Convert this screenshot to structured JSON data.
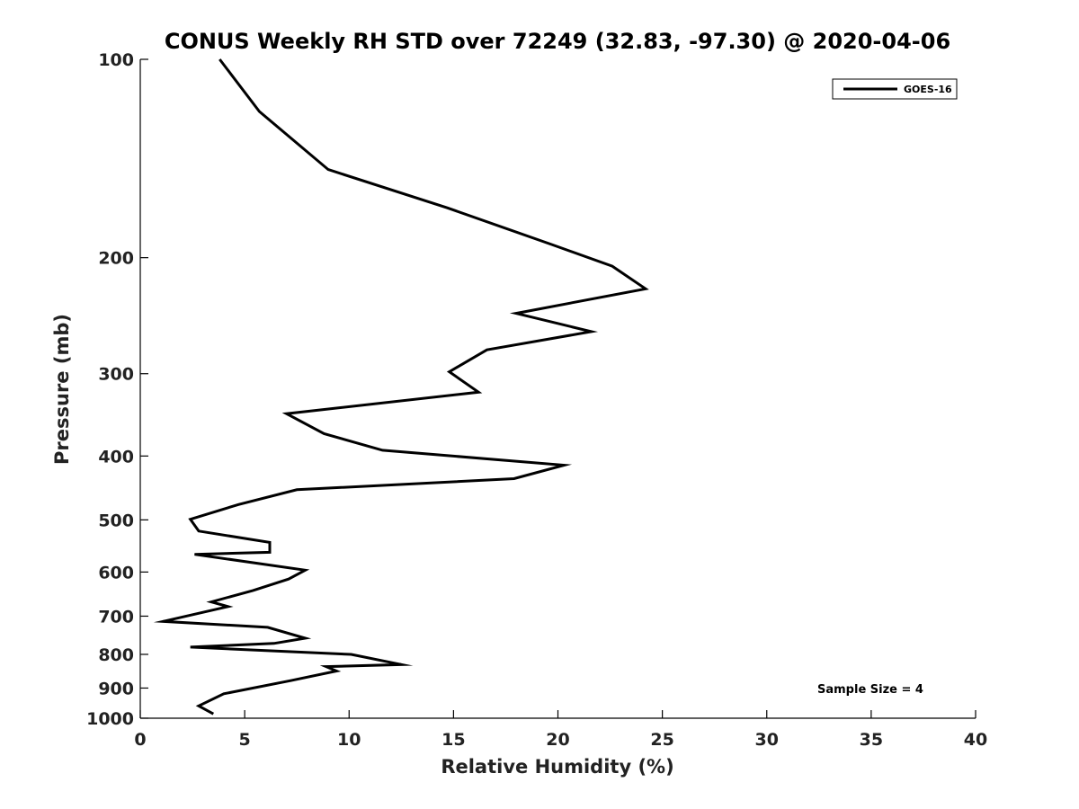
{
  "chart_data": {
    "type": "line",
    "title": "CONUS Weekly RH STD over 72249 (32.83, -97.30) @ 2020-04-06",
    "xlabel": "Relative Humidity (%)",
    "ylabel": "Pressure (mb)",
    "xlim": [
      0,
      40
    ],
    "ylim": [
      100,
      1000
    ],
    "y_scale": "log",
    "y_reversed": true,
    "xticks": [
      0,
      5,
      10,
      15,
      20,
      25,
      30,
      35,
      40
    ],
    "yticks": [
      100,
      200,
      300,
      400,
      500,
      600,
      700,
      800,
      900,
      1000
    ],
    "grid": false,
    "legend": {
      "placement": "top-right",
      "entries": [
        "GOES-16"
      ]
    },
    "annotations": [
      "Sample Size = 4"
    ],
    "series": [
      {
        "name": "GOES-16",
        "color": "#000000",
        "x": [
          3.8,
          5.7,
          9.0,
          14.7,
          19.7,
          22.6,
          24.2,
          18.0,
          21.6,
          16.6,
          14.8,
          16.2,
          7.0,
          8.8,
          11.6,
          20.3,
          17.9,
          7.5,
          4.7,
          2.4,
          2.8,
          6.2,
          6.2,
          2.6,
          7.9,
          7.1,
          5.4,
          3.4,
          4.2,
          1.1,
          6.1,
          7.9,
          6.4,
          2.4,
          10.1,
          12.5,
          8.9,
          9.4,
          7.2,
          4.0,
          2.8,
          3.5
        ],
        "y": [
          100,
          120,
          147,
          168,
          191,
          206,
          223,
          243,
          259,
          276,
          298,
          320,
          345,
          370,
          392,
          413,
          433,
          450,
          474,
          499,
          520,
          541,
          560,
          564,
          596,
          615,
          640,
          666,
          677,
          713,
          728,
          756,
          770,
          780,
          800,
          829,
          835,
          848,
          877,
          918,
          958,
          985
        ]
      }
    ]
  }
}
